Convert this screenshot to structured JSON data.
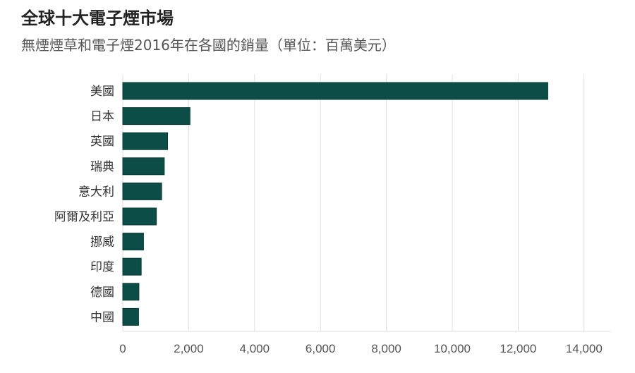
{
  "chart_data": {
    "type": "bar",
    "orientation": "horizontal",
    "title": "全球十大電子煙市場",
    "subtitle": "無煙煙草和電子煙2016年在各國的銷量（單位：百萬美元）",
    "categories": [
      "美國",
      "日本",
      "英國",
      "瑞典",
      "意大利",
      "阿爾及利亞",
      "挪威",
      "印度",
      "德國",
      "中國"
    ],
    "values": [
      12900,
      2040,
      1360,
      1260,
      1180,
      1020,
      630,
      560,
      490,
      480
    ],
    "xlim": [
      0,
      14600
    ],
    "xticks": [
      0,
      2000,
      4000,
      6000,
      8000,
      10000,
      12000,
      14000
    ],
    "xtick_labels": [
      "0",
      "2,000",
      "4,000",
      "6,000",
      "8,000",
      "10,000",
      "12,000",
      "14,000"
    ],
    "grid": "vertical",
    "bar_color": "#0d4d47"
  }
}
